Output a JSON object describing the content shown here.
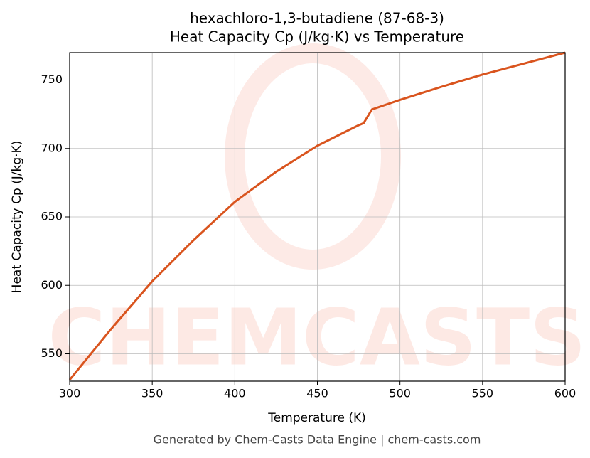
{
  "chart_data": {
    "type": "line",
    "title": "hexachloro-1,3-butadiene (87-68-3)",
    "subtitle": "Heat Capacity Cp (J/kg·K) vs Temperature",
    "x_label": "Temperature (K)",
    "y_label": "Heat Capacity Cp (J/kg·K)",
    "footer": "Generated by Chem-Casts Data Engine | chem-casts.com",
    "watermark": "CHEMCASTS",
    "x": [
      300,
      325,
      350,
      375,
      400,
      425,
      450,
      475,
      478,
      483,
      500,
      525,
      550,
      575,
      600
    ],
    "series": [
      {
        "name": "Cp",
        "color": "#d9541e",
        "values": [
          531,
          568,
          603,
          633,
          661,
          683,
          702,
          717,
          718.5,
          728.5,
          735.5,
          745,
          754,
          762,
          770
        ]
      }
    ],
    "xlim": [
      300,
      600
    ],
    "xticks": [
      300,
      350,
      400,
      450,
      500,
      550,
      600
    ],
    "ylim": [
      530,
      770
    ],
    "yticks": [
      550,
      600,
      650,
      700,
      750
    ],
    "grid": true
  }
}
